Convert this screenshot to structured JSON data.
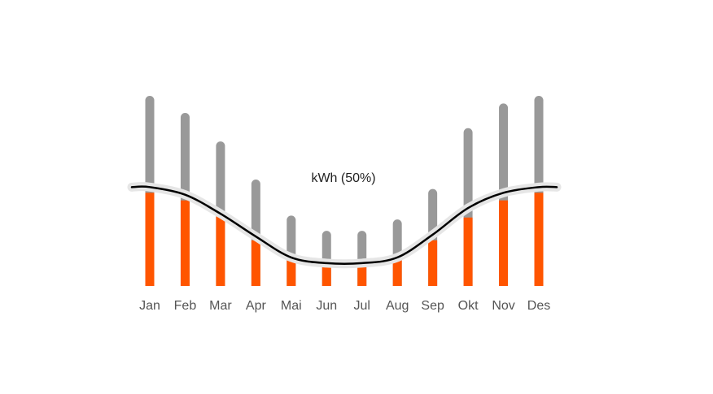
{
  "chart_data": {
    "type": "bar",
    "categories": [
      "Jan",
      "Feb",
      "Mar",
      "Apr",
      "Mai",
      "Jun",
      "Jul",
      "Aug",
      "Sep",
      "Okt",
      "Nov",
      "Des"
    ],
    "series": [
      {
        "values": [
          100,
          91,
          76,
          56,
          37,
          29,
          29,
          35,
          51,
          83,
          96,
          100
        ]
      },
      {
        "values": [
          49,
          45,
          37,
          24,
          16,
          11,
          11,
          15,
          24,
          36,
          45,
          49
        ]
      }
    ],
    "ylim": [
      0,
      100
    ],
    "line_values": [
      52,
      48,
      38,
      26,
      15,
      12,
      12,
      15,
      27,
      41,
      49,
      52
    ],
    "annotation": "kWh (50%)",
    "grid": false,
    "colors": {
      "total": "#999999",
      "part": "#ff5500",
      "curve": "#000000",
      "curve_halo": "#e6e6e6"
    }
  }
}
